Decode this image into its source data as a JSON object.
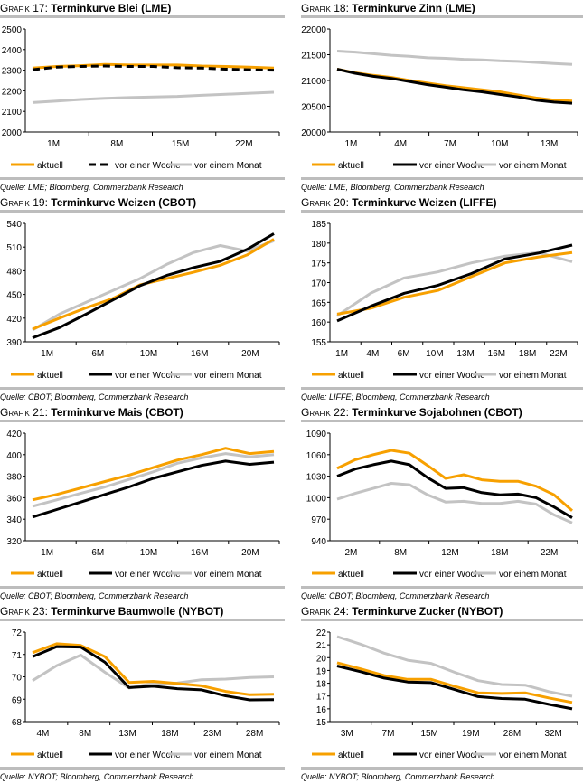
{
  "legend_labels": [
    "aktuell",
    "vor einer Woche",
    "vor einem Monat"
  ],
  "colors": {
    "aktuell": "#f7a000",
    "vor einer Woche": "#000000",
    "vor einem Monat": "#c3c3c3"
  },
  "chart_data": [
    {
      "type": "line",
      "prefix": "Grafik 17:",
      "title": "Terminkurve Blei (LME)",
      "source": "Quelle: LME; Bloomberg, Commerzbank Research",
      "x_ticks": [
        "1M",
        "8M",
        "15M",
        "22M"
      ],
      "ylim": [
        2000,
        2500
      ],
      "y_step": 100,
      "dashed_week": true,
      "series": [
        {
          "name": "aktuell",
          "values": [
            2310,
            2318,
            2322,
            2328,
            2325,
            2325,
            2325,
            2320,
            2318,
            2315,
            2310
          ]
        },
        {
          "name": "vor einer Woche",
          "values": [
            2302,
            2315,
            2318,
            2320,
            2318,
            2318,
            2312,
            2310,
            2305,
            2302,
            2300
          ]
        },
        {
          "name": "vor einem Monat",
          "values": [
            2143,
            2150,
            2158,
            2163,
            2167,
            2170,
            2173,
            2178,
            2183,
            2188,
            2193
          ]
        }
      ]
    },
    {
      "type": "line",
      "prefix": "Grafik 18:",
      "title": "Terminkurve Zinn (LME)",
      "source": "Quelle: LME, Bloomberg, Commerzbank Research",
      "x_ticks": [
        "1M",
        "4M",
        "7M",
        "10M",
        "13M"
      ],
      "ylim": [
        20000,
        22000
      ],
      "y_step": 500,
      "series": [
        {
          "name": "aktuell",
          "values": [
            21220,
            21150,
            21100,
            21060,
            21000,
            20950,
            20900,
            20860,
            20820,
            20780,
            20720,
            20660,
            20620,
            20600
          ]
        },
        {
          "name": "vor einer Woche",
          "values": [
            21220,
            21140,
            21080,
            21040,
            20980,
            20920,
            20870,
            20820,
            20780,
            20730,
            20680,
            20620,
            20580,
            20560
          ]
        },
        {
          "name": "vor einem Monat",
          "values": [
            21570,
            21550,
            21520,
            21490,
            21470,
            21440,
            21430,
            21410,
            21400,
            21380,
            21370,
            21350,
            21330,
            21310
          ]
        }
      ]
    },
    {
      "type": "line",
      "prefix": "Grafik 19:",
      "title": "Terminkurve Weizen (CBOT)",
      "source": "Quelle: CBOT; Bloomberg, Commerzbank Research",
      "x_ticks": [
        "1M",
        "6M",
        "10M",
        "16M",
        "20M"
      ],
      "ylim": [
        390,
        540
      ],
      "y_step": 30,
      "series": [
        {
          "name": "aktuell",
          "values": [
            406,
            420,
            433,
            445,
            462,
            470,
            478,
            487,
            500,
            520
          ]
        },
        {
          "name": "vor einer Woche",
          "values": [
            395,
            408,
            425,
            443,
            461,
            474,
            484,
            492,
            507,
            527
          ]
        },
        {
          "name": "vor einem Monat",
          "values": [
            405,
            425,
            440,
            455,
            470,
            488,
            503,
            512,
            505,
            518
          ]
        }
      ]
    },
    {
      "type": "line",
      "prefix": "Grafik 20:",
      "title": "Terminkurve Weizen (LIFFE)",
      "source": "Quelle: LIFFE; Bloomberg, Commerzbank Research",
      "x_ticks": [
        "1M",
        "4M",
        "6M",
        "10M",
        "13M",
        "16M",
        "18M",
        "22M"
      ],
      "ylim": [
        155,
        185
      ],
      "y_step": 5,
      "series": [
        {
          "name": "aktuell",
          "values": [
            162,
            163.5,
            166.3,
            168,
            171.5,
            175,
            176.5,
            177.6
          ]
        },
        {
          "name": "vor einer Woche",
          "values": [
            160.3,
            164,
            167.3,
            169.3,
            172.3,
            176,
            177.5,
            179.5
          ]
        },
        {
          "name": "vor einem Monat",
          "values": [
            161.6,
            167.3,
            171.2,
            172.7,
            175,
            176.7,
            177.6,
            175.3
          ]
        }
      ]
    },
    {
      "type": "line",
      "prefix": "Grafik 21:",
      "title": "Terminkurve Mais (CBOT)",
      "source": "Quelle: CBOT; Bloomberg, Commerzbank Research",
      "x_ticks": [
        "1M",
        "6M",
        "10M",
        "16M",
        "20M"
      ],
      "ylim": [
        320,
        420
      ],
      "y_step": 20,
      "series": [
        {
          "name": "aktuell",
          "values": [
            358,
            363,
            369,
            375,
            381,
            388,
            395,
            400,
            406,
            401,
            403
          ]
        },
        {
          "name": "vor einer Woche",
          "values": [
            342,
            349,
            356,
            363,
            370,
            378,
            384,
            390,
            394,
            391,
            393
          ]
        },
        {
          "name": "vor einem Monat",
          "values": [
            352,
            358,
            364,
            370,
            377,
            384,
            392,
            397,
            401,
            398,
            400
          ]
        }
      ]
    },
    {
      "type": "line",
      "prefix": "Grafik 22:",
      "title": "Terminkurve Sojabohnen (CBOT)",
      "source": "Quelle: CBOT; Bloomberg, Commerzbank Research",
      "x_ticks": [
        "2M",
        "8M",
        "12M",
        "18M",
        "22M"
      ],
      "ylim": [
        940,
        1090
      ],
      "y_step": 30,
      "series": [
        {
          "name": "aktuell",
          "values": [
            1041,
            1053,
            1060,
            1066,
            1062,
            1045,
            1027,
            1032,
            1025,
            1023,
            1023,
            1016,
            1004,
            982
          ]
        },
        {
          "name": "vor einer Woche",
          "values": [
            1030,
            1040,
            1046,
            1051,
            1046,
            1028,
            1013,
            1014,
            1007,
            1004,
            1005,
            1000,
            987,
            972
          ]
        },
        {
          "name": "vor einem Monat",
          "values": [
            998,
            1006,
            1013,
            1020,
            1018,
            1004,
            994,
            995,
            992,
            992,
            995,
            991,
            976,
            965
          ]
        }
      ]
    },
    {
      "type": "line",
      "prefix": "Grafik 23:",
      "title": "Terminkurve Baumwolle (NYBOT)",
      "source": "Quelle: NYBOT; Bloomberg, Commerzbank Research",
      "x_ticks": [
        "4M",
        "8M",
        "13M",
        "18M",
        "23M",
        "28M"
      ],
      "ylim": [
        68,
        72
      ],
      "y_step": 1,
      "series": [
        {
          "name": "aktuell",
          "values": [
            71.08,
            71.48,
            71.4,
            70.9,
            69.75,
            69.8,
            69.7,
            69.6,
            69.35,
            69.2,
            69.22
          ]
        },
        {
          "name": "vor einer Woche",
          "values": [
            70.9,
            71.35,
            71.33,
            70.65,
            69.52,
            69.58,
            69.47,
            69.42,
            69.15,
            68.97,
            68.98
          ]
        },
        {
          "name": "vor einem Monat",
          "values": [
            69.83,
            70.5,
            70.97,
            70.2,
            69.5,
            69.7,
            69.72,
            69.87,
            69.9,
            69.97,
            70.0
          ]
        }
      ]
    },
    {
      "type": "line",
      "prefix": "Grafik 24:",
      "title": "Terminkurve Zucker (NYBOT)",
      "source": "Quelle: NYBOT; Bloomberg, Commerzbank Research",
      "x_ticks": [
        "3M",
        "7M",
        "15M",
        "19M",
        "28M",
        "32M"
      ],
      "ylim": [
        15,
        22
      ],
      "y_step": 1,
      "series": [
        {
          "name": "aktuell",
          "values": [
            19.6,
            19.12,
            18.6,
            18.3,
            18.3,
            17.75,
            17.25,
            17.2,
            17.25,
            16.85,
            16.5
          ]
        },
        {
          "name": "vor einer Woche",
          "values": [
            19.35,
            18.9,
            18.4,
            18.1,
            18.05,
            17.5,
            16.95,
            16.8,
            16.75,
            16.35,
            16.0
          ]
        },
        {
          "name": "vor einem Monat",
          "values": [
            21.65,
            21.05,
            20.35,
            19.8,
            19.55,
            18.85,
            18.2,
            17.9,
            17.85,
            17.35,
            16.98
          ]
        }
      ]
    }
  ]
}
